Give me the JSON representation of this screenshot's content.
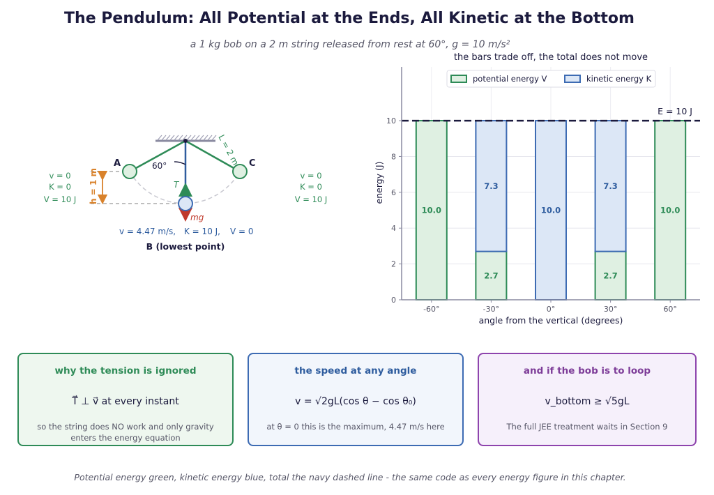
{
  "title": "The Pendulum: All Potential at the Ends, All Kinetic at the Bottom",
  "subtitle": "a 1 kg bob on a 2 m string released from rest at 60°,  g = 10 m/s²",
  "diagram": {
    "angle_label": "60°",
    "length_label": "L = 2 m",
    "height_label": "h = 1 m",
    "tension_label": "T",
    "weight_label": "mg",
    "point_a": "A",
    "point_c": "C",
    "end_state": {
      "v": "v = 0",
      "k": "K = 0",
      "v_energy": "V = 10 J"
    },
    "bottom_state": {
      "speed": "v = 4.47 m/s,",
      "k": "K = 10 J,",
      "v_energy": "V = 0"
    },
    "bottom_caption": "B  (lowest point)"
  },
  "chart_data": {
    "type": "bar",
    "title": "the bars trade off, the total does not move",
    "xlabel": "angle from the vertical  (degrees)",
    "ylabel": "energy   (J)",
    "categories": [
      "-60°",
      "-30°",
      "0°",
      "30°",
      "60°"
    ],
    "series": [
      {
        "name": "potential energy V",
        "values": [
          10.0,
          2.7,
          0,
          2.7,
          10.0
        ],
        "color": "#2e8b57",
        "fill": "#dff0e2"
      },
      {
        "name": "kinetic energy K",
        "values": [
          0,
          7.3,
          10.0,
          7.3,
          0
        ],
        "color": "#3d6bb3",
        "fill": "#dce7f6"
      }
    ],
    "total_line": {
      "value": 10,
      "label": "E = 10 J",
      "color": "#1b1a3d"
    },
    "ylim": [
      0,
      13
    ],
    "yticks": [
      0,
      2,
      4,
      6,
      8,
      10
    ],
    "grid": true,
    "legend": "top-center"
  },
  "cards": [
    {
      "title": "why the tension is ignored",
      "formula": "T⃗ ⊥ v⃗  at every instant",
      "note": "so the string does NO work and only gravity enters the energy equation"
    },
    {
      "title": "the speed at any angle",
      "formula": "v = √2gL(cos θ − cos θ₀)",
      "note": "at θ = 0 this is the maximum, 4.47 m/s here"
    },
    {
      "title": "and if the bob is to loop",
      "formula": "v_bottom ≥ √5gL",
      "note": "The full JEE treatment waits in Section 9"
    }
  ],
  "footer": "Potential energy green, kinetic energy blue, total the navy dashed line - the same code as every energy figure in this chapter."
}
